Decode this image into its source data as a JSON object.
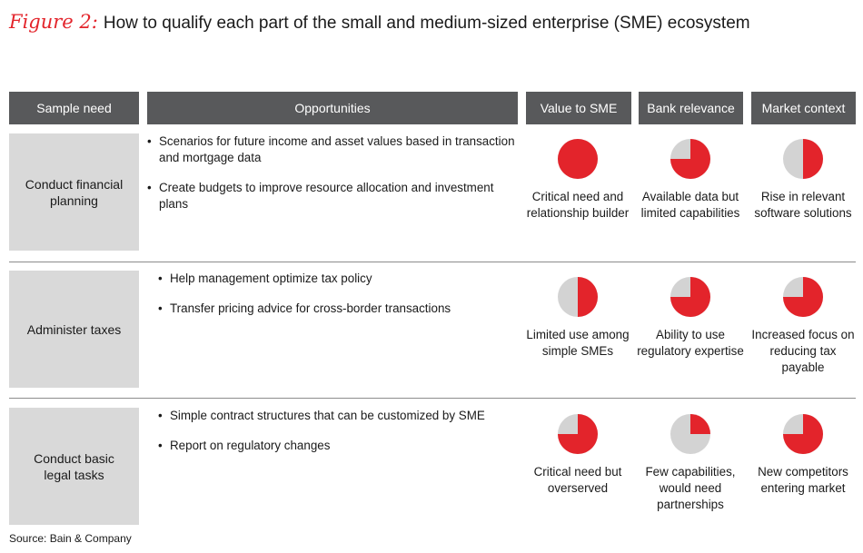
{
  "title": {
    "figure_label": "Figure 2:",
    "text": "How to qualify each part of the small and medium-sized enterprise (SME) ecosystem"
  },
  "headers": {
    "sample_need": "Sample need",
    "opportunities": "Opportunities",
    "value": "Value to SME",
    "bank": "Bank relevance",
    "market": "Market context"
  },
  "colors": {
    "pie_fill": "#e3242b",
    "pie_empty": "#d3d3d3",
    "header_bg": "#58595b",
    "label_bg": "#d9d9d9"
  },
  "rows": [
    {
      "label": "Conduct financial planning",
      "bullets": [
        "Scenarios for future income and asset values based in transaction and mortgage data",
        "Create budgets to improve resource allocation and investment plans"
      ],
      "value": {
        "fill": 1.0,
        "caption": "Critical need and relationship builder"
      },
      "bank": {
        "fill": 0.75,
        "caption": "Available data but limited capabilities"
      },
      "market": {
        "fill": 0.5,
        "caption": "Rise in relevant software solutions"
      }
    },
    {
      "label": "Administer taxes",
      "bullets": [
        "Help management optimize tax policy",
        "Transfer pricing advice for cross-border transactions"
      ],
      "value": {
        "fill": 0.5,
        "caption": "Limited use among simple SMEs"
      },
      "bank": {
        "fill": 0.75,
        "caption": "Ability to use regulatory expertise"
      },
      "market": {
        "fill": 0.75,
        "caption": "Increased focus on reducing tax payable"
      }
    },
    {
      "label": "Conduct basic legal tasks",
      "bullets": [
        "Simple contract structures that can be customized by SME",
        "Report on regulatory changes"
      ],
      "value": {
        "fill": 0.75,
        "caption": "Critical need but overserved"
      },
      "bank": {
        "fill": 0.25,
        "caption": "Few capabilities, would need partnerships"
      },
      "market": {
        "fill": 0.75,
        "caption": "New competitors entering market"
      }
    }
  ],
  "source": "Source: Bain & Company"
}
